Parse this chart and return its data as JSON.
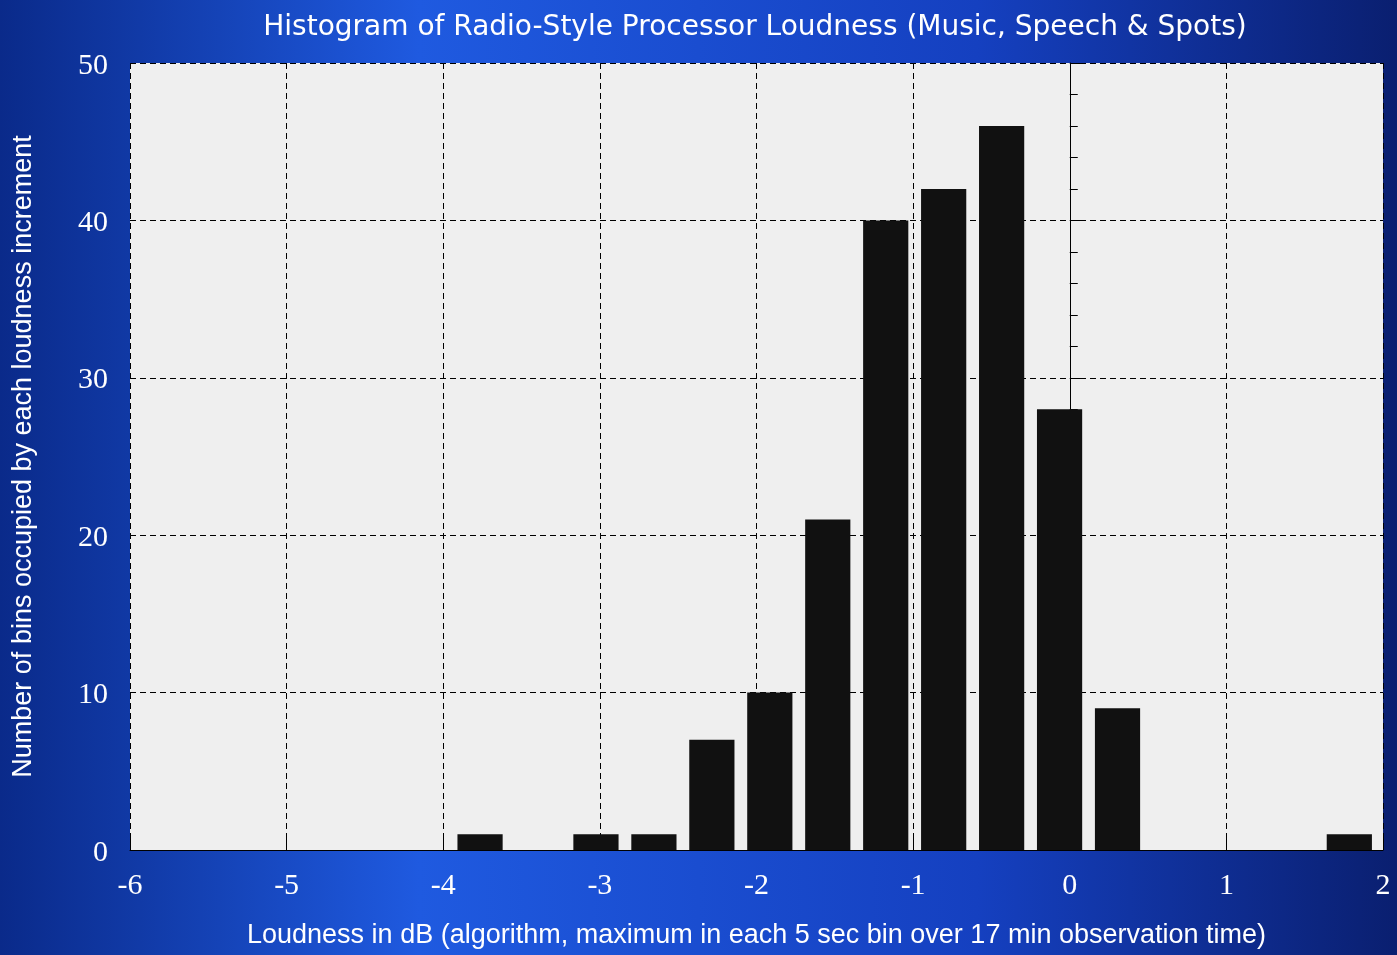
{
  "chart_data": {
    "type": "histogram",
    "title": "Histogram of Radio-Style Processor Loudness (Music, Speech & Spots)",
    "xlabel": "Loudness in dB (algorithm, maximum in each 5 sec bin over 17 min observation time)",
    "ylabel": "Number of bins occupied by each loudness increment",
    "bins": [
      -3.95,
      -3.58,
      -3.21,
      -2.84,
      -2.47,
      -2.1,
      -1.73,
      -1.36,
      -0.99,
      -0.62,
      -0.25,
      0.12,
      0.49,
      0.86,
      1.23,
      1.6,
      1.97
    ],
    "values": [
      1,
      0,
      1,
      1,
      7,
      10,
      21,
      40,
      42,
      46,
      28,
      9,
      0,
      0,
      0,
      1
    ],
    "color": "#111111",
    "xlim": [
      -6,
      2
    ],
    "xticks": [
      -6,
      -5,
      -4,
      -3,
      -2,
      -1,
      0,
      1,
      2
    ],
    "ylim": [
      0,
      50
    ],
    "yticks": [
      0,
      10,
      20,
      30,
      40,
      50
    ],
    "grid": true
  }
}
